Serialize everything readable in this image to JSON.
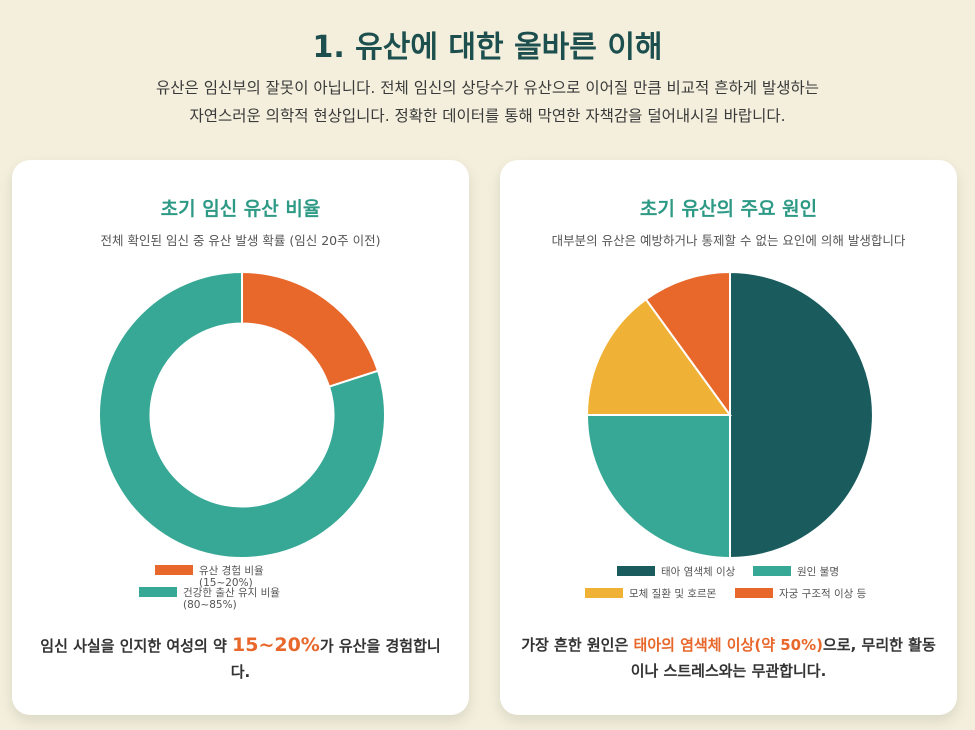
{
  "header": {
    "title": "1. 유산에 대한 올바른 이해",
    "intro_line1": "유산은 임신부의 잘못이 아닙니다. 전체 임신의 상당수가 유산으로 이어질 만큼 비교적 흔하게 발생하는",
    "intro_line2": "자연스러운 의학적 현상입니다. 정확한 데이터를 통해 막연한 자책감을 덜어내시길 바랍니다."
  },
  "left_card": {
    "title": "초기 임신 유산 비율",
    "subtitle": "전체 확인된 임신 중 유산 발생 확률 (임신 20주 이전)",
    "footnote_pre": "임신 사실을 인지한 여성의 약 ",
    "footnote_highlight": "15~20%",
    "footnote_post": "가 유산을 경험합니다."
  },
  "right_card": {
    "title": "초기 유산의 주요 원인",
    "subtitle": "대부분의 유산은 예방하거나 통제할 수 없는 요인에 의해 발생합니다",
    "footnote_pre": "가장 흔한 원인은 ",
    "footnote_highlight": "태아의 염색체 이상(약 50%)",
    "footnote_post": "으로, 무리한 활동이나 스트레스와는 무관합니다."
  },
  "chart_data": [
    {
      "type": "pie",
      "variant": "doughnut",
      "title": "초기 임신 유산 비율",
      "subtitle": "전체 확인된 임신 중 유산 발생 확률 (임신 20주 이전)",
      "legend_position": "bottom",
      "slices": [
        {
          "label": "유산 경험 비율",
          "sublabel": "(15~20%)",
          "value": 20,
          "color": "#e8672a"
        },
        {
          "label": "건강한 출산 유지 비율",
          "sublabel": "(80~85%)",
          "value": 80,
          "color": "#36a895"
        }
      ]
    },
    {
      "type": "pie",
      "title": "초기 유산의 주요 원인",
      "subtitle": "대부분의 유산은 예방하거나 통제할 수 없는 요인에 의해 발생합니다",
      "legend_position": "bottom",
      "slices": [
        {
          "label": "태아 염색체 이상",
          "value": 50,
          "color": "#1a5c5e"
        },
        {
          "label": "원인 불명",
          "value": 25,
          "color": "#36a895"
        },
        {
          "label": "모체 질환 및 호르몬",
          "value": 15,
          "color": "#f0b236"
        },
        {
          "label": "자궁 구조적 이상 등",
          "value": 10,
          "color": "#e8672a"
        }
      ]
    }
  ]
}
